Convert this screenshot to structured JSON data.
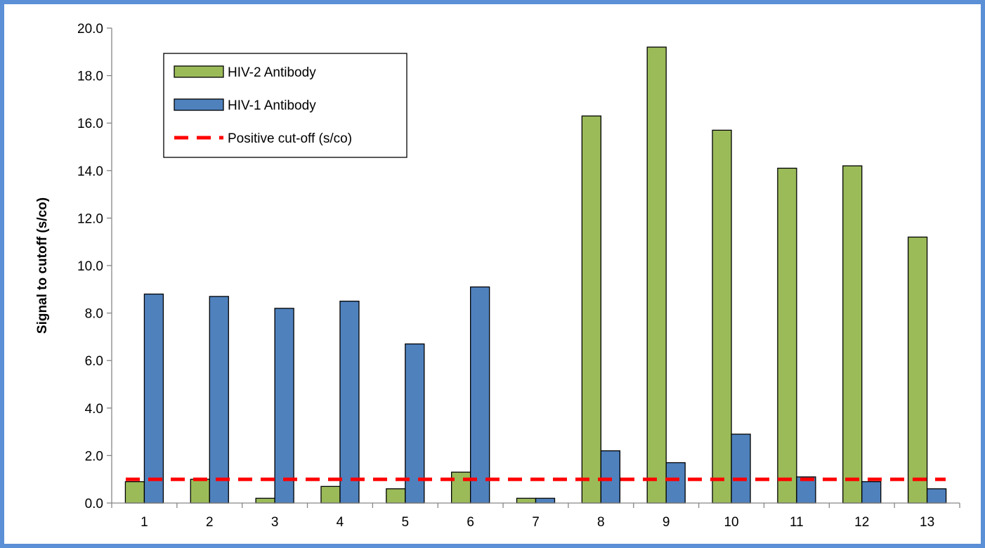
{
  "chart_data": {
    "type": "bar",
    "title": "",
    "xlabel": "",
    "ylabel": "Signal to cutoff (s/co)",
    "ylim": [
      0,
      20
    ],
    "yticks": [
      "0.0",
      "2.0",
      "4.0",
      "6.0",
      "8.0",
      "10.0",
      "12.0",
      "14.0",
      "16.0",
      "18.0",
      "20.0"
    ],
    "categories": [
      "1",
      "2",
      "3",
      "4",
      "5",
      "6",
      "7",
      "8",
      "9",
      "10",
      "11",
      "12",
      "13"
    ],
    "series": [
      {
        "name": "HIV-2 Antibody",
        "color": "#9bbb59",
        "values": [
          0.9,
          1.0,
          0.2,
          0.7,
          0.6,
          1.3,
          0.2,
          16.3,
          19.2,
          15.7,
          14.1,
          14.2,
          11.2
        ]
      },
      {
        "name": "HIV-1 Antibody",
        "color": "#4f81bd",
        "values": [
          8.8,
          8.7,
          8.2,
          8.5,
          6.7,
          9.1,
          0.2,
          2.2,
          1.7,
          2.9,
          1.1,
          0.9,
          0.6
        ]
      }
    ],
    "reference_line": {
      "name": "Positive cut-off (s/co)",
      "value": 1.0,
      "color": "#ff0000",
      "style": "dashed"
    },
    "legend_position": "top-left",
    "grid": false
  }
}
